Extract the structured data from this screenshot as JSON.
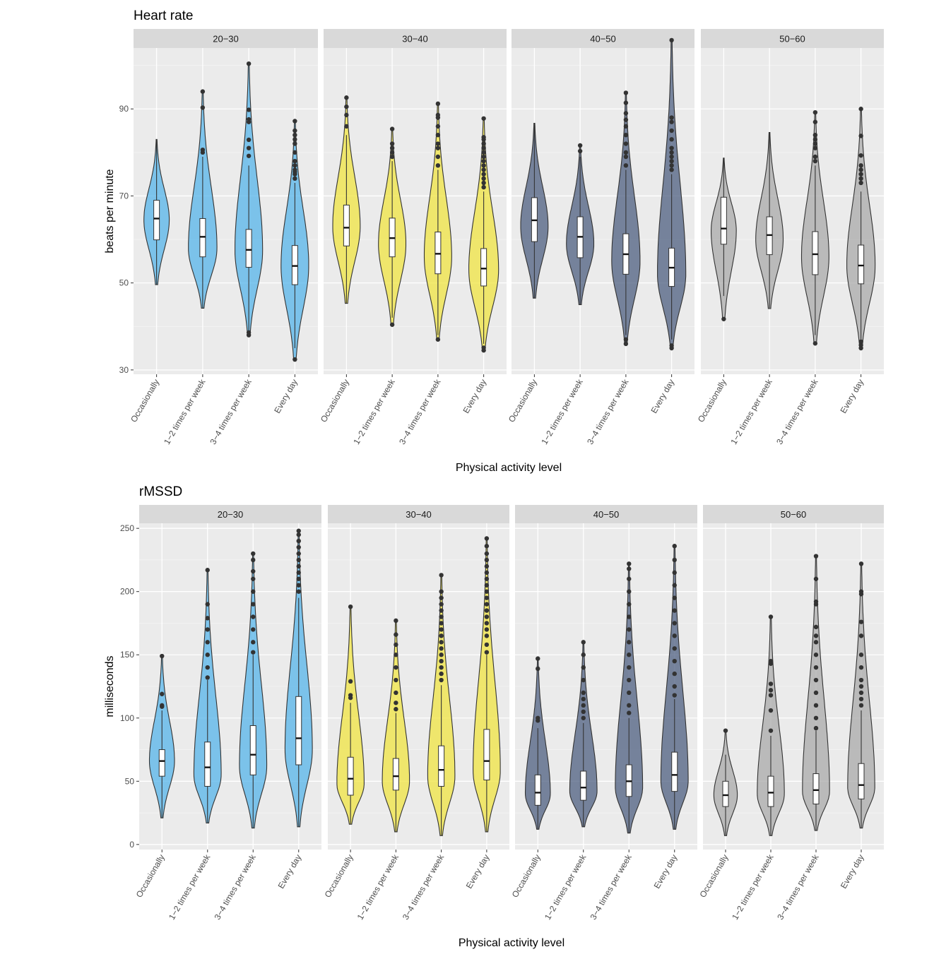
{
  "chart_data": [
    {
      "type": "violin",
      "title": "Heart rate",
      "xlabel": "Physical activity level",
      "ylabel": "beats per minute",
      "y_ticks": [
        30,
        50,
        70,
        90
      ],
      "ylim": [
        29,
        104
      ],
      "facets": [
        {
          "label": "20−30",
          "fill": "#56B4E9"
        },
        {
          "label": "30−40",
          "fill": "#F0E442"
        },
        {
          "label": "40−50",
          "fill": "#4E5F80"
        },
        {
          "label": "50−60",
          "fill": "#A9A9A9"
        }
      ],
      "categories": [
        "Occasionally",
        "1−2 times per week",
        "3−4 times per week",
        "Every day"
      ],
      "violins": [
        [
          {
            "min": 49.6,
            "max": 83,
            "q1": 59.9,
            "median": 64.8,
            "q3": 69,
            "wmin": 49.6,
            "wmax": 83,
            "outliers": [],
            "peak": 64.5,
            "width": 0.55
          },
          {
            "min": 44.2,
            "max": 94,
            "q1": 56,
            "median": 60.6,
            "q3": 64.8,
            "wmin": 44.2,
            "wmax": 79,
            "outliers": [
              80,
              80.6,
              90.3,
              94
            ],
            "peak": 58,
            "width": 0.62
          },
          {
            "min": 37.9,
            "max": 100.4,
            "q1": 53.6,
            "median": 57.6,
            "q3": 62.3,
            "wmin": 39,
            "wmax": 77,
            "outliers": [
              38,
              38.6,
              79.2,
              81,
              82.9,
              87,
              87.6,
              89.8,
              100.4
            ],
            "peak": 57.5,
            "width": 0.6
          },
          {
            "min": 32.4,
            "max": 87.2,
            "q1": 49.6,
            "median": 53.9,
            "q3": 58.6,
            "wmin": 35,
            "wmax": 73,
            "outliers": [
              32.4,
              74,
              75,
              75.5,
              76,
              77,
              78,
              80,
              82,
              83,
              84,
              85,
              87.2
            ],
            "peak": 54,
            "width": 0.6
          }
        ],
        [
          {
            "min": 45.3,
            "max": 92.6,
            "q1": 58.5,
            "median": 62.7,
            "q3": 67.9,
            "wmin": 45.3,
            "wmax": 84,
            "outliers": [
              86,
              88.6,
              90.5,
              92.6
            ],
            "peak": 63,
            "width": 0.6
          },
          {
            "min": 40.4,
            "max": 85.4,
            "q1": 56,
            "median": 60.3,
            "q3": 64.9,
            "wmin": 42,
            "wmax": 78,
            "outliers": [
              40.4,
              79,
              80,
              81,
              82,
              85.4
            ],
            "peak": 59,
            "width": 0.6
          },
          {
            "min": 37,
            "max": 91.2,
            "q1": 52.1,
            "median": 56.7,
            "q3": 61.7,
            "wmin": 38,
            "wmax": 76,
            "outliers": [
              37,
              77,
              79,
              81,
              82,
              84,
              86,
              88,
              88.6,
              91.2
            ],
            "peak": 56,
            "width": 0.6
          },
          {
            "min": 34.5,
            "max": 87.8,
            "q1": 49.3,
            "median": 53.3,
            "q3": 57.9,
            "wmin": 36,
            "wmax": 71,
            "outliers": [
              34.5,
              35.1,
              72,
              73,
              74,
              75,
              76,
              77,
              78,
              79,
              80,
              81,
              82,
              83,
              83.5,
              87.8
            ],
            "peak": 53,
            "width": 0.65
          }
        ],
        [
          {
            "min": 46.5,
            "max": 86.7,
            "q1": 59.5,
            "median": 64.4,
            "q3": 69.6,
            "wmin": 46.5,
            "wmax": 86.7,
            "outliers": [],
            "peak": 63,
            "width": 0.6
          },
          {
            "min": 45,
            "max": 81.6,
            "q1": 55.8,
            "median": 60.6,
            "q3": 65.2,
            "wmin": 45,
            "wmax": 79,
            "outliers": [
              80.3,
              81.6
            ],
            "peak": 59,
            "width": 0.6
          },
          {
            "min": 36,
            "max": 93.7,
            "q1": 52,
            "median": 56.6,
            "q3": 61.3,
            "wmin": 38,
            "wmax": 76,
            "outliers": [
              36,
              37,
              77,
              79,
              80,
              82,
              84,
              86,
              87.5,
              89,
              91.4,
              93.7
            ],
            "peak": 55,
            "width": 0.62
          },
          {
            "min": 35,
            "max": 105.8,
            "q1": 49.2,
            "median": 53.5,
            "q3": 58,
            "wmin": 37,
            "wmax": 75,
            "outliers": [
              35,
              35.6,
              76,
              77,
              78,
              79,
              80,
              81,
              83,
              85,
              87,
              88,
              105.8
            ],
            "peak": 52,
            "width": 0.62
          }
        ],
        [
          {
            "min": 41.7,
            "max": 78.7,
            "q1": 58.9,
            "median": 62.5,
            "q3": 69.7,
            "wmin": 47,
            "wmax": 78.7,
            "outliers": [
              41.7
            ],
            "peak": 62,
            "width": 0.55
          },
          {
            "min": 44.1,
            "max": 84.6,
            "q1": 56.5,
            "median": 61,
            "q3": 65.2,
            "wmin": 44.1,
            "wmax": 84.6,
            "outliers": [],
            "peak": 60,
            "width": 0.6
          },
          {
            "min": 36.1,
            "max": 89.2,
            "q1": 51.9,
            "median": 56.6,
            "q3": 61.8,
            "wmin": 38,
            "wmax": 77,
            "outliers": [
              36.1,
              78,
              79,
              81,
              82,
              83,
              84,
              87,
              89.2
            ],
            "peak": 56,
            "width": 0.6
          },
          {
            "min": 35,
            "max": 90,
            "q1": 49.8,
            "median": 54,
            "q3": 58.7,
            "wmin": 37,
            "wmax": 71,
            "outliers": [
              35,
              35.7,
              36.5,
              73,
              74,
              75,
              76,
              77,
              79.3,
              83.8,
              90
            ],
            "peak": 54,
            "width": 0.62
          }
        ]
      ]
    },
    {
      "type": "violin",
      "title": "rMSSD",
      "xlabel": "Physical activity level",
      "ylabel": "milliseconds",
      "y_ticks": [
        0,
        50,
        100,
        150,
        200,
        250
      ],
      "ylim": [
        -4,
        254
      ],
      "facets": [
        {
          "label": "20−30",
          "fill": "#56B4E9"
        },
        {
          "label": "30−40",
          "fill": "#F0E442"
        },
        {
          "label": "40−50",
          "fill": "#4E5F80"
        },
        {
          "label": "50−60",
          "fill": "#A9A9A9"
        }
      ],
      "categories": [
        "Occasionally",
        "1−2 times per week",
        "3−4 times per week",
        "Every day"
      ],
      "violins": [
        [
          {
            "min": 21,
            "max": 149,
            "q1": 54,
            "median": 66,
            "q3": 75,
            "wmin": 21,
            "wmax": 106,
            "outliers": [
              109,
              110,
              119,
              149
            ],
            "peak": 66,
            "width": 0.55
          },
          {
            "min": 17,
            "max": 217,
            "q1": 46,
            "median": 61,
            "q3": 81,
            "wmin": 17,
            "wmax": 130,
            "outliers": [
              132,
              140,
              150,
              160,
              170,
              179,
              190,
              217
            ],
            "peak": 55,
            "width": 0.6
          },
          {
            "min": 13,
            "max": 230,
            "q1": 55,
            "median": 71,
            "q3": 94,
            "wmin": 13,
            "wmax": 150,
            "outliers": [
              152,
              160,
              170,
              180,
              190,
              200,
              210,
              216,
              225,
              230
            ],
            "peak": 62,
            "width": 0.6
          },
          {
            "min": 14,
            "max": 248,
            "q1": 63,
            "median": 84,
            "q3": 117,
            "wmin": 14,
            "wmax": 195,
            "outliers": [
              200,
              205,
              210,
              215,
              220,
              225,
              230,
              235,
              240,
              245,
              248
            ],
            "peak": 75,
            "width": 0.6
          }
        ],
        [
          {
            "min": 16,
            "max": 188,
            "q1": 39,
            "median": 52,
            "q3": 69,
            "wmin": 16,
            "wmax": 112,
            "outliers": [
              116,
              118,
              129,
              188
            ],
            "peak": 48,
            "width": 0.6
          },
          {
            "min": 10,
            "max": 177,
            "q1": 43,
            "median": 54,
            "q3": 68,
            "wmin": 10,
            "wmax": 104,
            "outliers": [
              107,
              112,
              120,
              130,
              140,
              150,
              158,
              166,
              177
            ],
            "peak": 50,
            "width": 0.6
          },
          {
            "min": 7,
            "max": 213,
            "q1": 46,
            "median": 59,
            "q3": 78,
            "wmin": 7,
            "wmax": 126,
            "outliers": [
              130,
              135,
              140,
              145,
              150,
              155,
              160,
              165,
              170,
              175,
              180,
              185,
              190,
              195,
              200,
              213
            ],
            "peak": 54,
            "width": 0.6
          },
          {
            "min": 10,
            "max": 242,
            "q1": 51,
            "median": 66,
            "q3": 91,
            "wmin": 10,
            "wmax": 150,
            "outliers": [
              152,
              158,
              165,
              170,
              175,
              180,
              185,
              190,
              195,
              200,
              205,
              210,
              215,
              220,
              225,
              230,
              236,
              242
            ],
            "peak": 58,
            "width": 0.6
          }
        ],
        [
          {
            "min": 12,
            "max": 147,
            "q1": 31,
            "median": 41,
            "q3": 55,
            "wmin": 12,
            "wmax": 92,
            "outliers": [
              98,
              100,
              139,
              147
            ],
            "peak": 40,
            "width": 0.55
          },
          {
            "min": 14,
            "max": 160,
            "q1": 35,
            "median": 45,
            "q3": 58,
            "wmin": 14,
            "wmax": 96,
            "outliers": [
              100,
              105,
              110,
              115,
              120,
              130,
              140,
              150,
              160
            ],
            "peak": 42,
            "width": 0.6
          },
          {
            "min": 9,
            "max": 222,
            "q1": 38,
            "median": 50,
            "q3": 63,
            "wmin": 9,
            "wmax": 100,
            "outliers": [
              104,
              110,
              120,
              130,
              140,
              150,
              160,
              170,
              180,
              190,
              200,
              210,
              218,
              222
            ],
            "peak": 45,
            "width": 0.6
          },
          {
            "min": 12,
            "max": 236,
            "q1": 42,
            "median": 55,
            "q3": 73,
            "wmin": 12,
            "wmax": 115,
            "outliers": [
              118,
              125,
              135,
              145,
              155,
              165,
              175,
              185,
              195,
              205,
              215,
              225,
              236
            ],
            "peak": 50,
            "width": 0.6
          }
        ],
        [
          {
            "min": 7,
            "max": 90,
            "q1": 30,
            "median": 39,
            "q3": 50,
            "wmin": 7,
            "wmax": 71,
            "outliers": [
              90
            ],
            "peak": 39,
            "width": 0.52
          },
          {
            "min": 7,
            "max": 180,
            "q1": 30,
            "median": 41,
            "q3": 54,
            "wmin": 7,
            "wmax": 86,
            "outliers": [
              90,
              106,
              118,
              122,
              127,
              143,
              145,
              180
            ],
            "peak": 40,
            "width": 0.6
          },
          {
            "min": 11,
            "max": 228,
            "q1": 32,
            "median": 43,
            "q3": 56,
            "wmin": 11,
            "wmax": 90,
            "outliers": [
              92,
              100,
              110,
              120,
              130,
              140,
              150,
              160,
              165,
              172,
              190,
              192,
              210,
              228
            ],
            "peak": 42,
            "width": 0.6
          },
          {
            "min": 13,
            "max": 222,
            "q1": 36,
            "median": 47,
            "q3": 64,
            "wmin": 13,
            "wmax": 106,
            "outliers": [
              110,
              115,
              120,
              125,
              130,
              140,
              150,
              165,
              176,
              198,
              200,
              222
            ],
            "peak": 45,
            "width": 0.6
          }
        ]
      ]
    }
  ]
}
